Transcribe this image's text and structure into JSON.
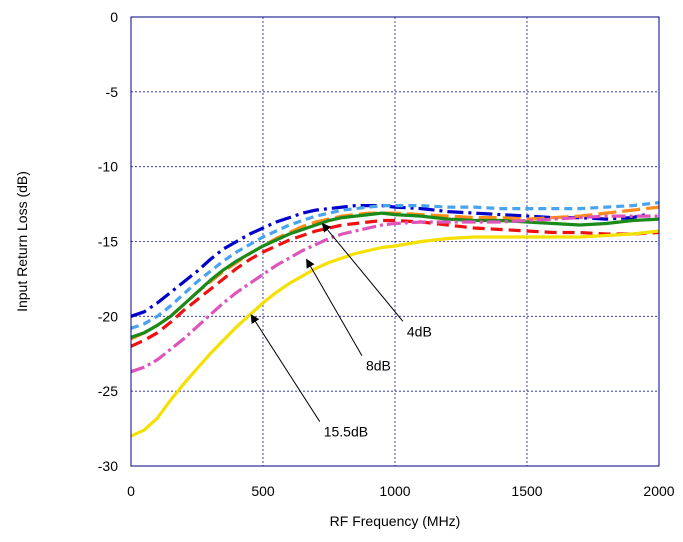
{
  "chart_data": {
    "type": "line",
    "title": "",
    "xlabel": "RF Frequency (MHz)",
    "ylabel": "Input Return Loss (dB)",
    "xlim": [
      0,
      2000
    ],
    "ylim": [
      -30,
      0
    ],
    "xticks": [
      0,
      500,
      1000,
      1500,
      2000
    ],
    "yticks": [
      0,
      -5,
      -10,
      -15,
      -20,
      -25,
      -30
    ],
    "grid": true,
    "legend": "none",
    "series": [
      {
        "color": "#0000cc",
        "dash": "16 5 3 5",
        "x": [
          0,
          50,
          100,
          150,
          200,
          250,
          300,
          350,
          400,
          450,
          500,
          550,
          600,
          650,
          700,
          750,
          800,
          850,
          900,
          950,
          1000,
          1100,
          1200,
          1300,
          1400,
          1500,
          1600,
          1700,
          1800,
          1900,
          1950
        ],
        "y": [
          -20.0,
          -19.7,
          -19.1,
          -18.4,
          -17.7,
          -17.0,
          -16.2,
          -15.5,
          -15.0,
          -14.5,
          -14.1,
          -13.7,
          -13.4,
          -13.1,
          -12.9,
          -12.8,
          -12.7,
          -12.6,
          -12.6,
          -12.6,
          -12.7,
          -12.8,
          -13.0,
          -13.1,
          -13.2,
          -13.3,
          -13.4,
          -13.4,
          -13.5,
          -13.4,
          -13.2
        ]
      },
      {
        "color": "#4aa3ee",
        "dash": "8 5",
        "x": [
          0,
          50,
          100,
          150,
          200,
          250,
          300,
          350,
          400,
          450,
          500,
          550,
          600,
          650,
          700,
          750,
          800,
          850,
          900,
          950,
          1000,
          1100,
          1200,
          1300,
          1400,
          1500,
          1600,
          1700,
          1800,
          1900,
          2000
        ],
        "y": [
          -20.8,
          -20.5,
          -20.0,
          -19.3,
          -18.5,
          -17.7,
          -17.0,
          -16.3,
          -15.7,
          -15.2,
          -14.7,
          -14.3,
          -13.9,
          -13.6,
          -13.3,
          -13.1,
          -12.9,
          -12.8,
          -12.7,
          -12.6,
          -12.6,
          -12.6,
          -12.7,
          -12.7,
          -12.8,
          -12.8,
          -12.8,
          -12.8,
          -12.7,
          -12.6,
          -12.4
        ]
      },
      {
        "color": "#ff8c1a",
        "dash": "18 6",
        "x": [
          0,
          50,
          100,
          150,
          200,
          250,
          300,
          350,
          400,
          450,
          500,
          550,
          600,
          650,
          700,
          750,
          800,
          850,
          900,
          950,
          1000,
          1100,
          1200,
          1300,
          1400,
          1500,
          1600,
          1700,
          1800,
          1900,
          2000
        ],
        "y": [
          -21.5,
          -21.1,
          -20.6,
          -20.0,
          -19.2,
          -18.4,
          -17.7,
          -17.0,
          -16.4,
          -15.8,
          -15.3,
          -14.8,
          -14.4,
          -14.0,
          -13.7,
          -13.5,
          -13.3,
          -13.2,
          -13.1,
          -13.1,
          -13.1,
          -13.2,
          -13.3,
          -13.4,
          -13.4,
          -13.5,
          -13.4,
          -13.3,
          -13.1,
          -12.9,
          -12.7
        ]
      },
      {
        "color": "#1a8a1a",
        "dash": "",
        "x": [
          0,
          50,
          100,
          150,
          200,
          250,
          300,
          350,
          400,
          450,
          500,
          550,
          600,
          650,
          700,
          750,
          800,
          850,
          900,
          950,
          1000,
          1100,
          1200,
          1300,
          1400,
          1500,
          1600,
          1700,
          1800,
          1900,
          2000
        ],
        "y": [
          -21.4,
          -21.1,
          -20.6,
          -20.0,
          -19.2,
          -18.4,
          -17.6,
          -16.9,
          -16.3,
          -15.8,
          -15.3,
          -14.9,
          -14.5,
          -14.2,
          -13.9,
          -13.6,
          -13.4,
          -13.3,
          -13.2,
          -13.1,
          -13.2,
          -13.3,
          -13.5,
          -13.6,
          -13.6,
          -13.7,
          -13.8,
          -13.9,
          -13.8,
          -13.6,
          -13.5
        ]
      },
      {
        "color": "#ee1111",
        "dash": "12 6",
        "x": [
          0,
          50,
          100,
          150,
          200,
          250,
          300,
          350,
          400,
          450,
          500,
          550,
          600,
          650,
          700,
          750,
          800,
          850,
          900,
          950,
          1000,
          1100,
          1200,
          1300,
          1400,
          1500,
          1600,
          1700,
          1800,
          1900,
          2000
        ],
        "y": [
          -22.0,
          -21.6,
          -21.1,
          -20.4,
          -19.6,
          -18.9,
          -18.2,
          -17.5,
          -16.8,
          -16.2,
          -15.7,
          -15.3,
          -14.9,
          -14.6,
          -14.3,
          -14.1,
          -13.9,
          -13.8,
          -13.7,
          -13.6,
          -13.6,
          -13.7,
          -13.9,
          -14.1,
          -14.2,
          -14.3,
          -14.4,
          -14.4,
          -14.5,
          -14.5,
          -14.4
        ]
      },
      {
        "color": "#dd55bb",
        "dash": "14 4 3 4",
        "x": [
          0,
          50,
          100,
          150,
          200,
          250,
          300,
          350,
          400,
          450,
          500,
          550,
          600,
          650,
          700,
          750,
          800,
          850,
          900,
          950,
          1000,
          1100,
          1200,
          1300,
          1400,
          1500,
          1600,
          1700,
          1800,
          1900,
          2000
        ],
        "y": [
          -23.7,
          -23.4,
          -22.9,
          -22.2,
          -21.5,
          -20.7,
          -19.9,
          -19.1,
          -18.4,
          -17.8,
          -17.2,
          -16.6,
          -16.1,
          -15.6,
          -15.2,
          -14.8,
          -14.5,
          -14.3,
          -14.1,
          -13.9,
          -13.8,
          -13.7,
          -13.7,
          -13.7,
          -13.7,
          -13.6,
          -13.5,
          -13.4,
          -13.3,
          -13.3,
          -13.3
        ]
      },
      {
        "color": "#f5e000",
        "dash": "",
        "x": [
          0,
          50,
          100,
          150,
          200,
          250,
          300,
          350,
          400,
          450,
          500,
          550,
          600,
          650,
          700,
          750,
          800,
          850,
          900,
          950,
          1000,
          1100,
          1200,
          1300,
          1400,
          1500,
          1600,
          1700,
          1800,
          1900,
          2000
        ],
        "y": [
          -28.0,
          -27.6,
          -26.8,
          -25.6,
          -24.5,
          -23.5,
          -22.5,
          -21.6,
          -20.7,
          -19.9,
          -19.1,
          -18.4,
          -17.8,
          -17.3,
          -16.8,
          -16.4,
          -16.1,
          -15.8,
          -15.6,
          -15.4,
          -15.3,
          -15.0,
          -14.8,
          -14.7,
          -14.7,
          -14.7,
          -14.7,
          -14.7,
          -14.6,
          -14.5,
          -14.3
        ]
      }
    ],
    "annotations": [
      {
        "text": "4dB",
        "xy": [
          725,
          -13.8
        ],
        "xytext": [
          1045,
          -21.0
        ]
      },
      {
        "text": "8dB",
        "xy": [
          665,
          -16.2
        ],
        "xytext": [
          890,
          -23.3
        ]
      },
      {
        "text": "15.5dB",
        "xy": [
          455,
          -19.9
        ],
        "xytext": [
          730,
          -27.7
        ]
      }
    ]
  }
}
